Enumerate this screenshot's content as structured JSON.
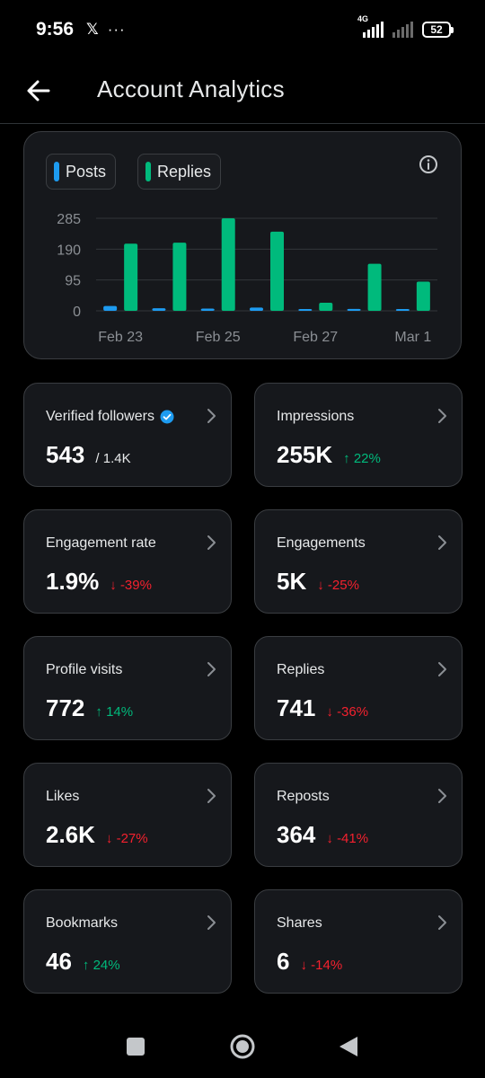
{
  "status_bar": {
    "time": "9:56",
    "app_icon": "x-logo",
    "dots": "···",
    "network": "4G",
    "battery": "52"
  },
  "header": {
    "title": "Account Analytics",
    "back_icon": "arrow-left-icon"
  },
  "chart_data": {
    "type": "bar",
    "categories": [
      "Feb 23",
      "Feb 24",
      "Feb 25",
      "Feb 26",
      "Feb 27",
      "Feb 28",
      "Mar 1"
    ],
    "x_tick_labels": [
      "Feb 23",
      "Feb 25",
      "Feb 27",
      "Mar 1"
    ],
    "series": [
      {
        "name": "Posts",
        "color": "#1d9bf0",
        "values": [
          15,
          8,
          7,
          10,
          2,
          6,
          5
        ]
      },
      {
        "name": "Replies",
        "color": "#00ba7c",
        "values": [
          207,
          210,
          285,
          244,
          25,
          145,
          90
        ]
      }
    ],
    "y_ticks": [
      0,
      95,
      190,
      285
    ],
    "ylim": [
      0,
      285
    ],
    "grid": true,
    "legend_placement": "top-left"
  },
  "stats": [
    {
      "label": "Verified followers",
      "value": "543",
      "sub": "/ 1.4K",
      "verified": true
    },
    {
      "label": "Impressions",
      "value": "255K",
      "change": "22%",
      "direction": "up"
    },
    {
      "label": "Engagement rate",
      "value": "1.9%",
      "change": "-39%",
      "direction": "down"
    },
    {
      "label": "Engagements",
      "value": "5K",
      "change": "-25%",
      "direction": "down"
    },
    {
      "label": "Profile visits",
      "value": "772",
      "change": "14%",
      "direction": "up"
    },
    {
      "label": "Replies",
      "value": "741",
      "change": "-36%",
      "direction": "down"
    },
    {
      "label": "Likes",
      "value": "2.6K",
      "change": "-27%",
      "direction": "down"
    },
    {
      "label": "Reposts",
      "value": "364",
      "change": "-41%",
      "direction": "down"
    },
    {
      "label": "Bookmarks",
      "value": "46",
      "change": "24%",
      "direction": "up"
    },
    {
      "label": "Shares",
      "value": "6",
      "change": "-14%",
      "direction": "down"
    }
  ],
  "colors": {
    "up": "#00ba7c",
    "down": "#f4212e",
    "posts": "#1d9bf0",
    "replies": "#00ba7c",
    "verified": "#1d9bf0"
  },
  "nav": {
    "recents_icon": "square-recents-icon",
    "home_icon": "circle-home-icon",
    "back_icon": "triangle-back-icon"
  }
}
